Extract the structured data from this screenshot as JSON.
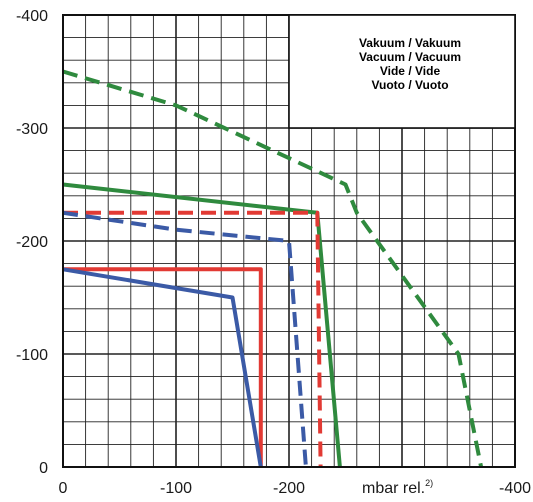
{
  "chart_data": {
    "type": "line",
    "title": "",
    "xlabel": "mbar rel.",
    "xlabel_footnote": "2)",
    "ylabel": "",
    "x_ticks": [
      "0",
      "-100",
      "-200",
      "",
      "-400"
    ],
    "y_ticks": [
      "0",
      "-100",
      "-200",
      "-300",
      "-400"
    ],
    "xlim": [
      0,
      400
    ],
    "ylim": [
      0,
      400
    ],
    "grid": true,
    "legend_box_lines": [
      "Vakuum / Vakuum",
      "Vacuum / Vacuum",
      "Vide / Vide",
      "Vuoto / Vuoto"
    ],
    "series": [
      {
        "color": "#2f8a3e",
        "dash": "solid",
        "points": [
          [
            0,
            250
          ],
          [
            225,
            225
          ],
          [
            245,
            0
          ]
        ]
      },
      {
        "color": "#2f8a3e",
        "dash": "dashed",
        "points": [
          [
            0,
            350
          ],
          [
            100,
            320
          ],
          [
            250,
            250
          ],
          [
            260,
            225
          ],
          [
            350,
            100
          ],
          [
            370,
            0
          ]
        ]
      },
      {
        "color": "#e23a34",
        "dash": "solid",
        "points": [
          [
            0,
            175
          ],
          [
            175,
            175
          ],
          [
            175,
            0
          ]
        ]
      },
      {
        "color": "#e23a34",
        "dash": "dashed",
        "points": [
          [
            0,
            225
          ],
          [
            225,
            225
          ],
          [
            228,
            0
          ]
        ]
      },
      {
        "color": "#3b5aa6",
        "dash": "solid",
        "points": [
          [
            0,
            175
          ],
          [
            150,
            150
          ],
          [
            175,
            0
          ]
        ]
      },
      {
        "color": "#3b5aa6",
        "dash": "dashed",
        "points": [
          [
            0,
            225
          ],
          [
            100,
            210
          ],
          [
            200,
            200
          ],
          [
            215,
            0
          ]
        ]
      }
    ]
  }
}
